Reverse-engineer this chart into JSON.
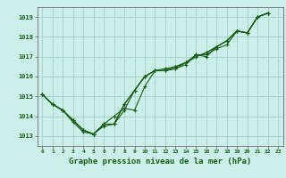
{
  "title": "Graphe pression niveau de la mer (hPa)",
  "background_color": "#cceee8",
  "grid_color": "#aad4cc",
  "line_color": "#1a5c1a",
  "xlim": [
    -0.5,
    23.5
  ],
  "ylim": [
    1012.5,
    1019.5
  ],
  "yticks": [
    1013,
    1014,
    1015,
    1016,
    1017,
    1018,
    1019
  ],
  "xticks": [
    0,
    1,
    2,
    3,
    4,
    5,
    6,
    7,
    8,
    9,
    10,
    11,
    12,
    13,
    14,
    15,
    16,
    17,
    18,
    19,
    20,
    21,
    22,
    23
  ],
  "series": [
    {
      "x": [
        0,
        1,
        2,
        3,
        4,
        5,
        6,
        7,
        8,
        9,
        10,
        11,
        12,
        13,
        14,
        15,
        16,
        17,
        18,
        19,
        20,
        21,
        22
      ],
      "y": [
        1015.1,
        1014.6,
        1014.3,
        1013.8,
        1013.3,
        1013.1,
        1013.5,
        1013.6,
        1014.3,
        1015.3,
        1016.0,
        1016.3,
        1016.3,
        1016.4,
        1016.6,
        1017.1,
        1017.1,
        1017.4,
        1017.6,
        1018.3,
        1018.2,
        1019.0,
        1019.2
      ]
    },
    {
      "x": [
        0,
        1,
        2,
        3,
        4,
        5,
        6,
        7,
        8,
        9,
        10,
        11,
        12,
        13,
        14,
        15,
        16,
        17,
        18,
        19,
        20,
        21,
        22
      ],
      "y": [
        1015.1,
        1014.6,
        1014.3,
        1013.8,
        1013.3,
        1013.1,
        1013.6,
        1013.6,
        1014.6,
        1015.3,
        1016.0,
        1016.3,
        1016.3,
        1016.5,
        1016.7,
        1017.0,
        1017.2,
        1017.5,
        1017.8,
        1018.3,
        1018.2,
        1019.0,
        1019.2
      ]
    },
    {
      "x": [
        0,
        1,
        2,
        3,
        4,
        5,
        6,
        7,
        8,
        9,
        10,
        11,
        12,
        13,
        14,
        15,
        16,
        17,
        18,
        19,
        20,
        21,
        22
      ],
      "y": [
        1015.1,
        1014.6,
        1014.3,
        1013.8,
        1013.3,
        1013.1,
        1013.6,
        1013.6,
        1014.6,
        1015.3,
        1016.0,
        1016.3,
        1016.4,
        1016.5,
        1016.7,
        1017.0,
        1017.2,
        1017.5,
        1017.8,
        1018.3,
        1018.2,
        1019.0,
        1019.2
      ]
    },
    {
      "x": [
        0,
        1,
        2,
        3,
        4,
        5,
        6,
        7,
        8,
        9,
        10,
        11,
        12,
        13,
        14,
        15,
        16,
        17,
        18,
        19,
        20,
        21,
        22
      ],
      "y": [
        1015.1,
        1014.6,
        1014.3,
        1013.7,
        1013.2,
        1013.1,
        1013.6,
        1014.0,
        1014.4,
        1014.3,
        1015.5,
        1016.3,
        1016.3,
        1016.4,
        1016.7,
        1017.1,
        1017.0,
        1017.5,
        1017.8,
        1018.3,
        1018.2,
        1019.0,
        1019.2
      ]
    }
  ]
}
